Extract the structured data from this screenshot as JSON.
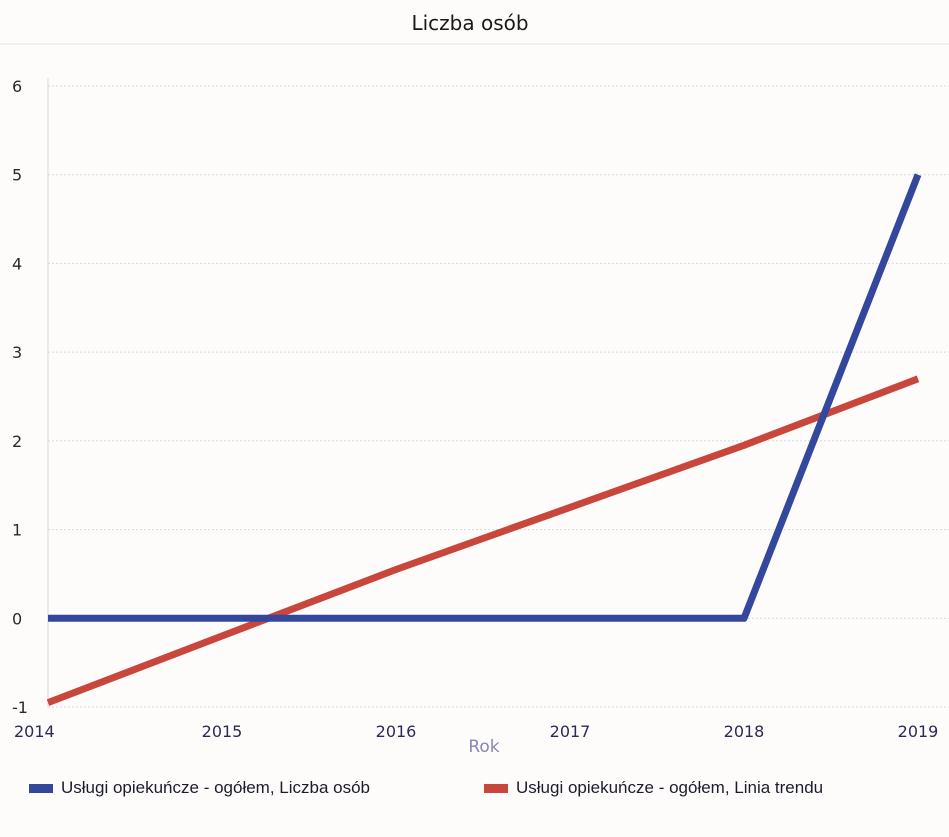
{
  "chart_data": {
    "type": "line",
    "title": "Liczba osób",
    "xlabel": "Rok",
    "ylabel": "",
    "x": [
      2014,
      2015,
      2016,
      2017,
      2018,
      2019
    ],
    "x_tick_labels": [
      "2014",
      "2015",
      "2016",
      "2017",
      "2018",
      "2019"
    ],
    "y_tick_labels": [
      "-1",
      "0",
      "1",
      "2",
      "3",
      "4",
      "5",
      "6"
    ],
    "ylim": [
      -1,
      6
    ],
    "grid": true,
    "legend_position": "bottom",
    "series": [
      {
        "name": "Usługi opiekuńcze - ogółem, Liczba osób",
        "color": "#33479c",
        "values": [
          0,
          0,
          0,
          0,
          0,
          5
        ]
      },
      {
        "name": "Usługi opiekuńcze - ogółem, Linia trendu",
        "color": "#c9463c",
        "values": [
          -0.95,
          -0.2,
          0.55,
          1.25,
          1.95,
          2.7
        ]
      }
    ]
  }
}
